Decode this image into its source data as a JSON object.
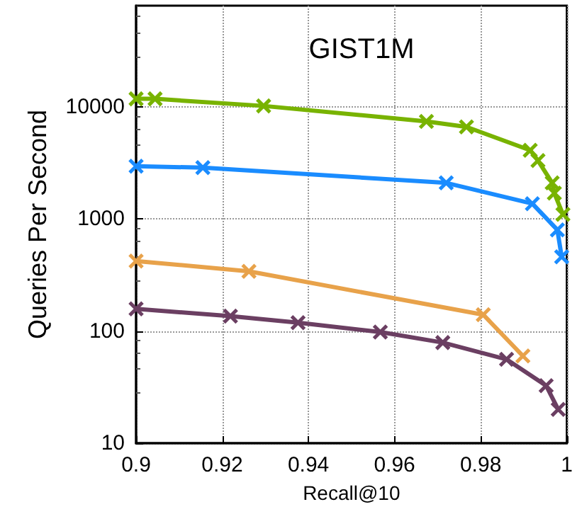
{
  "chart_data": {
    "type": "line",
    "title": "GIST1M",
    "xlabel": "Recall@10",
    "ylabel": "Queries Per Second",
    "xlim": [
      0.9,
      1
    ],
    "xticks": [
      0.9,
      0.92,
      0.94,
      0.96,
      0.98,
      1
    ],
    "ylim": [
      10,
      80000
    ],
    "yticks": [
      10,
      100,
      1000,
      10000
    ],
    "log": "y",
    "grid": true,
    "marker": "cross",
    "line_style": "solid",
    "series": [
      {
        "color": "#78b300",
        "x": [
          0.9,
          0.9044,
          0.9296,
          0.9674,
          0.9767,
          0.9915,
          0.9933,
          0.9966,
          0.9971,
          0.9991
        ],
        "values": [
          11800,
          11800,
          10200,
          7430,
          6630,
          4100,
          3320,
          2100,
          1700,
          1100
        ]
      },
      {
        "color": "#1a8cff",
        "x": [
          0.9,
          0.9155,
          0.972,
          0.992,
          0.9978,
          0.9988
        ],
        "values": [
          2960,
          2870,
          2100,
          1370,
          800,
          460
        ]
      },
      {
        "color": "#e8a24a",
        "x": [
          0.9,
          0.9262,
          0.9806,
          0.9898
        ],
        "values": [
          422,
          341,
          140,
          60
        ]
      },
      {
        "color": "#6b3f62",
        "x": [
          0.9,
          0.9219,
          0.9376,
          0.9567,
          0.9712,
          0.986,
          0.9952,
          0.998
        ],
        "values": [
          158,
          136,
          119,
          98,
          79,
          56,
          32.6,
          20
        ]
      }
    ]
  }
}
